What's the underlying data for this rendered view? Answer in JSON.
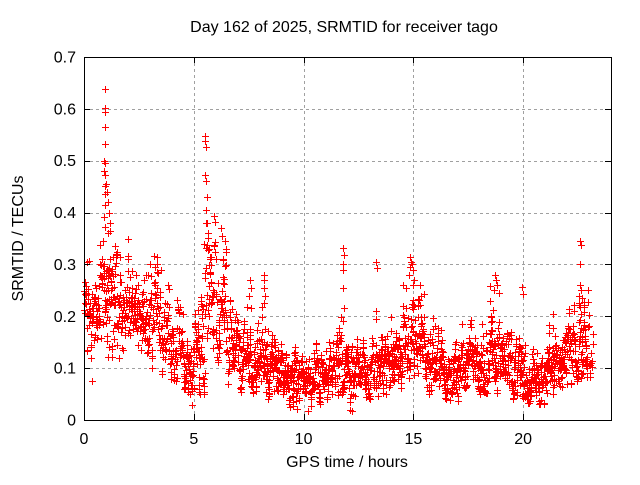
{
  "chart_data": {
    "type": "scatter",
    "title": "Day 162 of 2025, SRMTID for receiver tago",
    "xlabel": "GPS time / hours",
    "ylabel": "SRMTID / TECUs",
    "xlim": [
      0,
      24
    ],
    "ylim": [
      0,
      0.7
    ],
    "xticks": [
      "0",
      "5",
      "10",
      "15",
      "20"
    ],
    "yticks": [
      "0",
      "0.1",
      "0.2",
      "0.3",
      "0.4",
      "0.5",
      "0.6",
      "0.7"
    ],
    "grid": true,
    "grid_style": "dashed",
    "legend_position": "none",
    "marker": "plus",
    "marker_size_px": 7,
    "marker_color": "#ff0000",
    "grid_color": "#a0a0a0",
    "border_color": "#000000",
    "text_color": "#000000",
    "background_color": "#ffffff",
    "seed": 20250162,
    "bin_format": "[t_start_hours, t_end_hours, n_points, mean_TECU, sd_TECU, min_TECU, max_TECU]",
    "density_bins": [
      [
        0.0,
        0.5,
        40,
        0.22,
        0.05,
        0.1,
        0.33
      ],
      [
        0.5,
        1.0,
        46,
        0.24,
        0.055,
        0.1,
        0.4
      ],
      [
        1.0,
        1.5,
        48,
        0.24,
        0.055,
        0.12,
        0.42
      ],
      [
        1.5,
        2.0,
        42,
        0.21,
        0.05,
        0.11,
        0.34
      ],
      [
        2.0,
        2.5,
        40,
        0.2,
        0.05,
        0.1,
        0.35
      ],
      [
        2.5,
        3.0,
        40,
        0.19,
        0.05,
        0.1,
        0.33
      ],
      [
        3.0,
        3.5,
        40,
        0.2,
        0.05,
        0.1,
        0.36
      ],
      [
        3.5,
        4.0,
        38,
        0.17,
        0.045,
        0.08,
        0.3
      ],
      [
        4.0,
        4.5,
        40,
        0.13,
        0.04,
        0.05,
        0.26
      ],
      [
        4.5,
        5.0,
        44,
        0.095,
        0.03,
        0.035,
        0.18
      ],
      [
        5.0,
        5.5,
        40,
        0.13,
        0.05,
        0.05,
        0.3
      ],
      [
        5.5,
        6.0,
        42,
        0.26,
        0.06,
        0.13,
        0.4
      ],
      [
        6.0,
        6.5,
        40,
        0.22,
        0.055,
        0.11,
        0.37
      ],
      [
        6.5,
        7.0,
        40,
        0.15,
        0.045,
        0.07,
        0.28
      ],
      [
        7.0,
        7.5,
        42,
        0.12,
        0.04,
        0.05,
        0.25
      ],
      [
        7.5,
        8.0,
        42,
        0.12,
        0.04,
        0.05,
        0.27
      ],
      [
        8.0,
        8.5,
        42,
        0.11,
        0.04,
        0.04,
        0.26
      ],
      [
        8.5,
        9.0,
        44,
        0.095,
        0.03,
        0.035,
        0.17
      ],
      [
        9.0,
        9.5,
        44,
        0.085,
        0.027,
        0.025,
        0.15
      ],
      [
        9.5,
        10.0,
        44,
        0.08,
        0.027,
        0.02,
        0.14
      ],
      [
        10.0,
        10.5,
        44,
        0.075,
        0.025,
        0.02,
        0.13
      ],
      [
        10.5,
        11.0,
        44,
        0.08,
        0.026,
        0.03,
        0.15
      ],
      [
        11.0,
        11.5,
        44,
        0.09,
        0.03,
        0.04,
        0.17
      ],
      [
        11.5,
        12.0,
        44,
        0.1,
        0.038,
        0.04,
        0.2
      ],
      [
        12.0,
        12.5,
        44,
        0.085,
        0.032,
        0.02,
        0.17
      ],
      [
        12.5,
        13.0,
        44,
        0.095,
        0.03,
        0.04,
        0.18
      ],
      [
        13.0,
        13.5,
        44,
        0.1,
        0.032,
        0.04,
        0.2
      ],
      [
        13.5,
        14.0,
        44,
        0.11,
        0.034,
        0.05,
        0.2
      ],
      [
        14.0,
        14.5,
        44,
        0.11,
        0.035,
        0.05,
        0.22
      ],
      [
        14.5,
        15.0,
        44,
        0.16,
        0.055,
        0.07,
        0.31
      ],
      [
        15.0,
        15.5,
        44,
        0.16,
        0.05,
        0.08,
        0.3
      ],
      [
        15.5,
        16.0,
        42,
        0.12,
        0.04,
        0.05,
        0.24
      ],
      [
        16.0,
        16.5,
        42,
        0.1,
        0.032,
        0.04,
        0.19
      ],
      [
        16.5,
        17.0,
        42,
        0.085,
        0.03,
        0.03,
        0.16
      ],
      [
        17.0,
        17.5,
        42,
        0.095,
        0.032,
        0.03,
        0.19
      ],
      [
        17.5,
        18.0,
        42,
        0.115,
        0.035,
        0.05,
        0.22
      ],
      [
        18.0,
        18.5,
        42,
        0.11,
        0.035,
        0.05,
        0.21
      ],
      [
        18.5,
        19.0,
        42,
        0.13,
        0.045,
        0.05,
        0.28
      ],
      [
        19.0,
        19.5,
        42,
        0.11,
        0.035,
        0.05,
        0.22
      ],
      [
        19.5,
        20.0,
        42,
        0.11,
        0.04,
        0.04,
        0.25
      ],
      [
        20.0,
        20.5,
        42,
        0.08,
        0.03,
        0.03,
        0.15
      ],
      [
        20.5,
        21.0,
        42,
        0.075,
        0.03,
        0.03,
        0.14
      ],
      [
        21.0,
        21.5,
        42,
        0.11,
        0.035,
        0.05,
        0.21
      ],
      [
        21.5,
        22.0,
        42,
        0.125,
        0.035,
        0.06,
        0.2
      ],
      [
        22.0,
        22.5,
        42,
        0.14,
        0.04,
        0.07,
        0.25
      ],
      [
        22.5,
        23.0,
        44,
        0.16,
        0.05,
        0.08,
        0.3
      ],
      [
        23.0,
        23.2,
        10,
        0.13,
        0.03,
        0.08,
        0.18
      ]
    ],
    "points_outliers": [
      [
        0.95,
        0.638
      ],
      [
        0.94,
        0.601
      ],
      [
        0.96,
        0.594
      ],
      [
        0.95,
        0.565
      ],
      [
        0.94,
        0.532
      ],
      [
        0.96,
        0.495
      ],
      [
        0.95,
        0.472
      ],
      [
        0.94,
        0.452
      ],
      [
        0.96,
        0.435
      ],
      [
        0.95,
        0.415
      ],
      [
        0.93,
        0.392
      ],
      [
        0.97,
        0.372
      ],
      [
        0.9,
        0.5
      ],
      [
        0.92,
        0.48
      ],
      [
        1.0,
        0.455
      ],
      [
        1.05,
        0.44
      ],
      [
        1.1,
        0.42
      ],
      [
        1.15,
        0.4
      ],
      [
        1.2,
        0.38
      ],
      [
        1.1,
        0.36
      ],
      [
        0.35,
        0.075
      ],
      [
        4.9,
        0.028
      ],
      [
        5.5,
        0.548
      ],
      [
        5.52,
        0.538
      ],
      [
        5.55,
        0.527
      ],
      [
        5.5,
        0.472
      ],
      [
        5.55,
        0.461
      ],
      [
        5.6,
        0.43
      ],
      [
        5.55,
        0.405
      ],
      [
        5.6,
        0.38
      ],
      [
        5.65,
        0.36
      ],
      [
        5.45,
        0.34
      ],
      [
        5.7,
        0.33
      ],
      [
        5.75,
        0.31
      ],
      [
        6.25,
        0.37
      ],
      [
        6.3,
        0.355
      ],
      [
        6.4,
        0.345
      ],
      [
        6.45,
        0.33
      ],
      [
        6.35,
        0.31
      ],
      [
        7.55,
        0.27
      ],
      [
        7.6,
        0.255
      ],
      [
        7.5,
        0.24
      ],
      [
        8.2,
        0.28
      ],
      [
        8.22,
        0.27
      ],
      [
        8.18,
        0.255
      ],
      [
        8.25,
        0.24
      ],
      [
        8.2,
        0.225
      ],
      [
        9.7,
        0.022
      ],
      [
        10.2,
        0.018
      ],
      [
        11.8,
        0.332
      ],
      [
        11.82,
        0.318
      ],
      [
        11.8,
        0.3
      ],
      [
        11.78,
        0.29
      ],
      [
        11.8,
        0.254
      ],
      [
        11.82,
        0.216
      ],
      [
        11.78,
        0.19
      ],
      [
        12.2,
        0.017
      ],
      [
        13.3,
        0.305
      ],
      [
        13.35,
        0.293
      ],
      [
        13.32,
        0.21
      ],
      [
        13.3,
        0.195
      ],
      [
        14.85,
        0.315
      ],
      [
        14.9,
        0.305
      ],
      [
        14.85,
        0.295
      ],
      [
        14.95,
        0.3
      ],
      [
        15.0,
        0.29
      ],
      [
        14.8,
        0.28
      ],
      [
        15.05,
        0.27
      ],
      [
        15.3,
        0.26
      ],
      [
        15.35,
        0.24
      ],
      [
        17.2,
        0.185
      ],
      [
        18.7,
        0.28
      ],
      [
        18.75,
        0.27
      ],
      [
        18.8,
        0.26
      ],
      [
        18.65,
        0.25
      ],
      [
        18.9,
        0.245
      ],
      [
        19.95,
        0.256
      ],
      [
        20.0,
        0.243
      ],
      [
        20.8,
        0.038
      ],
      [
        22.6,
        0.345
      ],
      [
        22.62,
        0.337
      ],
      [
        22.6,
        0.3
      ],
      [
        22.58,
        0.26
      ],
      [
        22.65,
        0.25
      ],
      [
        22.55,
        0.24
      ],
      [
        22.7,
        0.235
      ],
      [
        22.55,
        0.225
      ]
    ]
  }
}
